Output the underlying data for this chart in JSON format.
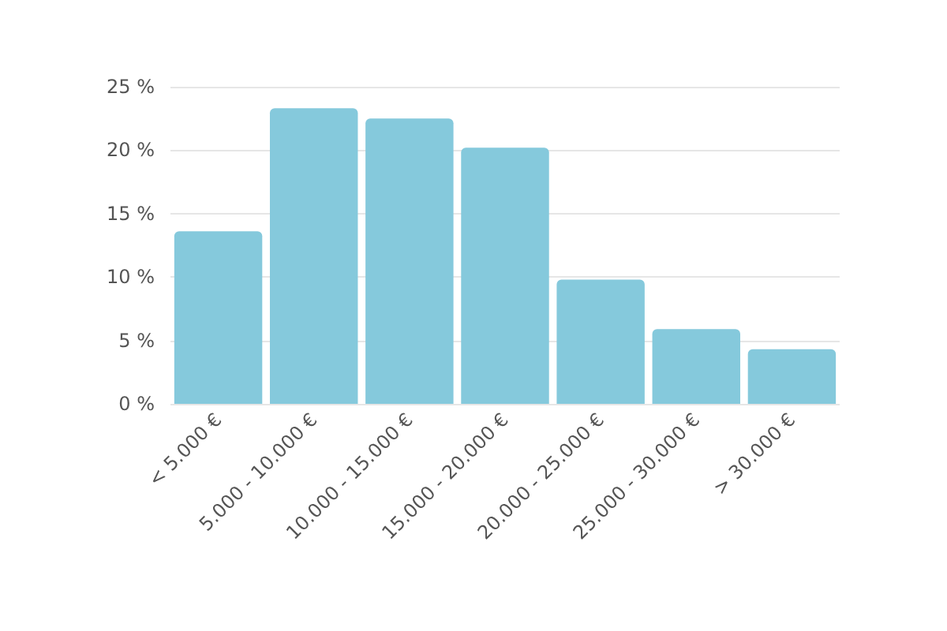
{
  "chart_data": {
    "type": "bar",
    "categories": [
      "< 5.000 €",
      "5.000 - 10.000 €",
      "10.000 - 15.000 €",
      "15.000 - 20.000 €",
      "20.000 - 25.000 €",
      "25.000 - 30.000 €",
      "> 30.000 €"
    ],
    "values": [
      13.6,
      23.3,
      22.5,
      20.2,
      9.8,
      5.9,
      4.3
    ],
    "color": "#85c9dc",
    "ylim": [
      0,
      25
    ],
    "yticks": [
      {
        "value": 0,
        "label": "0 %"
      },
      {
        "value": 5,
        "label": "5 %"
      },
      {
        "value": 10,
        "label": "10 %"
      },
      {
        "value": 15,
        "label": "15 %"
      },
      {
        "value": 20,
        "label": "20 %"
      },
      {
        "value": 25,
        "label": "25 %"
      }
    ],
    "grid": "y"
  }
}
